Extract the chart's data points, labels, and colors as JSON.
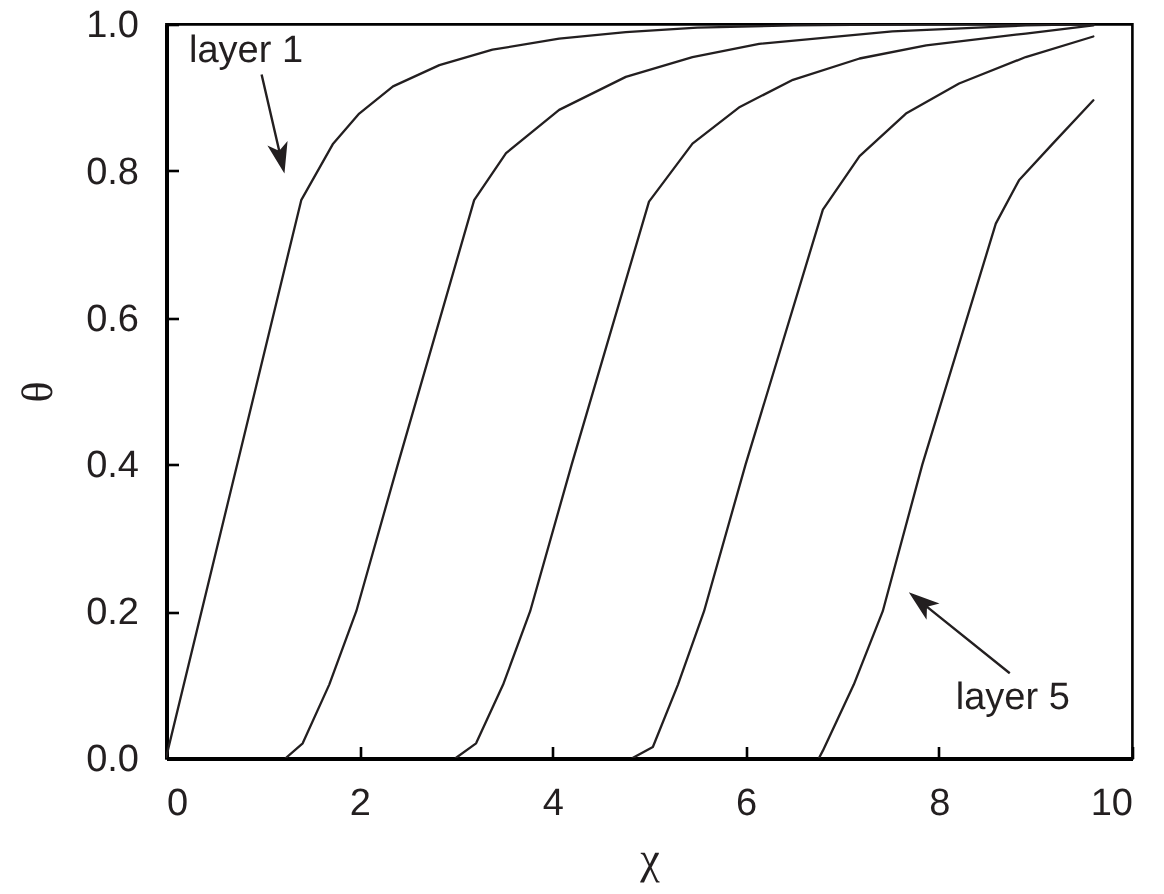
{
  "chart_data": {
    "type": "line",
    "xlabel": "χ",
    "ylabel": "θ",
    "xlim": [
      0,
      10
    ],
    "ylim": [
      0,
      1
    ],
    "xticks": [
      0,
      2,
      4,
      6,
      8,
      10
    ],
    "yticks": [
      {
        "value": 0,
        "label": "0.0"
      },
      0.2,
      0.4,
      0.6,
      0.8,
      {
        "value": 1,
        "label": "1.0"
      }
    ],
    "line_style": "solid",
    "annotations": [
      "layer 1",
      {
        "text": "layer 5",
        "x": 7.42,
        "y": 0.2
      }
    ],
    "series": [
      {
        "color": "#231f20",
        "x": [
          0,
          1.4,
          1.73,
          2.0,
          2.35,
          2.83,
          3.38,
          4.07,
          4.76,
          5.5,
          6.5,
          8.0,
          9.6
        ],
        "values": [
          0,
          0.76,
          0.837,
          0.878,
          0.915,
          0.944,
          0.965,
          0.98,
          0.989,
          0.995,
          0.998,
          1,
          1
        ]
      },
      {
        "color": "#231f20",
        "x": [
          1.24,
          1.415,
          1.69,
          1.97,
          2.4,
          3.19,
          3.52,
          4.07,
          4.76,
          5.45,
          6.14,
          7.52,
          8.9,
          9.6
        ],
        "values": [
          0,
          0.02,
          0.1,
          0.2,
          0.4,
          0.76,
          0.824,
          0.883,
          0.928,
          0.955,
          0.973,
          0.99,
          0.998,
          1
        ]
      },
      {
        "color": "#231f20",
        "x": [
          3.0,
          3.21,
          3.49,
          3.77,
          4.2,
          5.0,
          5.45,
          5.94,
          6.49,
          7.18,
          7.87,
          8.9,
          9.6
        ],
        "values": [
          0,
          0.02,
          0.1,
          0.2,
          0.4,
          0.758,
          0.837,
          0.887,
          0.924,
          0.953,
          0.971,
          0.987,
          0.998
        ]
      },
      {
        "color": "#231f20",
        "x": [
          4.83,
          5.04,
          5.3,
          5.57,
          6.0,
          6.8,
          7.18,
          7.66,
          8.21,
          8.9,
          9.6
        ],
        "values": [
          0,
          0.015,
          0.1,
          0.2,
          0.4,
          0.747,
          0.82,
          0.878,
          0.919,
          0.955,
          0.983
        ]
      },
      {
        "color": "#231f20",
        "x": [
          6.76,
          6.8,
          7.12,
          7.42,
          7.83,
          8.59,
          8.83,
          9.18,
          9.6
        ],
        "values": [
          0,
          0.01,
          0.1,
          0.2,
          0.4,
          0.728,
          0.787,
          0.837,
          0.896
        ]
      }
    ]
  }
}
